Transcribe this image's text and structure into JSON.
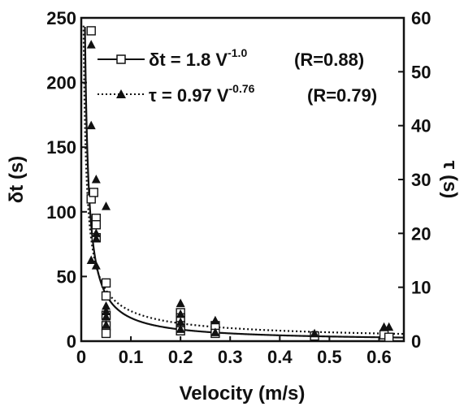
{
  "chart_data": {
    "type": "scatter",
    "xlabel": "Velocity (m/s)",
    "ylabel_left": "δt  (s)",
    "ylabel_right": "τ (s)",
    "xlim": [
      0,
      0.65
    ],
    "ylim_left": [
      0,
      250
    ],
    "ylim_right": [
      0,
      60
    ],
    "x_ticks": [
      "0",
      "0.1",
      "0.2",
      "0.3",
      "0.4",
      "0.5",
      "0.6"
    ],
    "y_left_ticks": [
      "0",
      "50",
      "100",
      "150",
      "200",
      "250"
    ],
    "y_right_ticks": [
      "0",
      "10",
      "20",
      "30",
      "40",
      "50",
      "60"
    ],
    "grid": false,
    "legend_position": "top-right",
    "series": [
      {
        "name": "δt",
        "axis": "left",
        "marker": "open-square",
        "points": [
          [
            0.02,
            240
          ],
          [
            0.02,
            110
          ],
          [
            0.025,
            115
          ],
          [
            0.03,
            95
          ],
          [
            0.03,
            90
          ],
          [
            0.03,
            80
          ],
          [
            0.05,
            45
          ],
          [
            0.05,
            35
          ],
          [
            0.05,
            20
          ],
          [
            0.05,
            12
          ],
          [
            0.05,
            6
          ],
          [
            0.2,
            22
          ],
          [
            0.2,
            18
          ],
          [
            0.2,
            12
          ],
          [
            0.2,
            8
          ],
          [
            0.27,
            12
          ],
          [
            0.27,
            6
          ],
          [
            0.47,
            4
          ],
          [
            0.61,
            5
          ],
          [
            0.62,
            3
          ]
        ],
        "fit": {
          "label": "δt = 1.8 V",
          "exponent": "-1.0",
          "r": "(R=0.88)",
          "a": 1.8,
          "b": -1.0
        }
      },
      {
        "name": "τ",
        "axis": "right",
        "marker": "filled-triangle",
        "points": [
          [
            0.02,
            55
          ],
          [
            0.02,
            40
          ],
          [
            0.02,
            15
          ],
          [
            0.03,
            30
          ],
          [
            0.03,
            20
          ],
          [
            0.03,
            19
          ],
          [
            0.03,
            14
          ],
          [
            0.05,
            25
          ],
          [
            0.05,
            6.5
          ],
          [
            0.05,
            5.5
          ],
          [
            0.05,
            4.5
          ],
          [
            0.05,
            3
          ],
          [
            0.2,
            7
          ],
          [
            0.2,
            5
          ],
          [
            0.2,
            3.5
          ],
          [
            0.2,
            2.2
          ],
          [
            0.27,
            3.8
          ],
          [
            0.27,
            1.6
          ],
          [
            0.47,
            1.4
          ],
          [
            0.61,
            2.6
          ],
          [
            0.62,
            2.6
          ]
        ],
        "fit": {
          "label": "τ = 0.97 V",
          "exponent": "-0.76",
          "r": "(R=0.79)",
          "a": 0.97,
          "b": -0.76
        }
      }
    ]
  }
}
